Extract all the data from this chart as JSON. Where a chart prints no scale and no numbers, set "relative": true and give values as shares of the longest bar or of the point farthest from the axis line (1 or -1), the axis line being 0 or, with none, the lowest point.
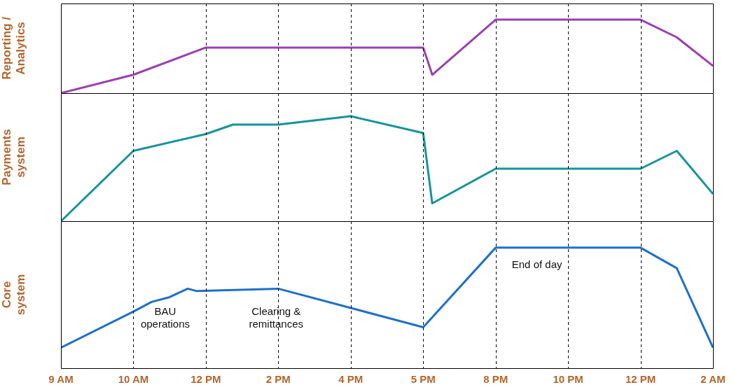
{
  "chart_data": [
    {
      "type": "line",
      "ylabel": "Reporting / Analytics",
      "relative": true,
      "grid": "x",
      "tick_labels": false,
      "categories": [
        null,
        null,
        null,
        null,
        null,
        null,
        null,
        null,
        null,
        null,
        null,
        null,
        null,
        null,
        null,
        null,
        null,
        null,
        null,
        null,
        null,
        null,
        null,
        null,
        null,
        null,
        null,
        null,
        null,
        null,
        null,
        null,
        null,
        null,
        null,
        null,
        null,
        null,
        null,
        null,
        null,
        null,
        null,
        null,
        null,
        null,
        null,
        null,
        null,
        null,
        null,
        null,
        null,
        null,
        null,
        null,
        null,
        null,
        null,
        null,
        null,
        null,
        null,
        null,
        null,
        null,
        null,
        null,
        null,
        null,
        null,
        null,
        null
      ],
      "series": [
        {
          "color": "#9b3fb0",
          "values": [
            0,
            null,
            null,
            null,
            null,
            null,
            null,
            null,
            0.25,
            null,
            null,
            null,
            null,
            null,
            null,
            null,
            0.62,
            null,
            null,
            null,
            null,
            null,
            null,
            null,
            null,
            null,
            null,
            null,
            null,
            null,
            null,
            null,
            null,
            null,
            null,
            null,
            null,
            null,
            null,
            null,
            0.62,
            0.25,
            null,
            null,
            null,
            null,
            null,
            null,
            1,
            null,
            null,
            null,
            null,
            null,
            null,
            null,
            null,
            null,
            null,
            null,
            null,
            null,
            null,
            null,
            1,
            null,
            null,
            null,
            0.76,
            null,
            null,
            null,
            0.37
          ]
        }
      ]
    },
    {
      "type": "line",
      "ylabel": "Payments system",
      "relative": true,
      "grid": "x",
      "tick_labels": false,
      "categories": [
        null,
        null,
        null,
        null,
        null,
        null,
        null,
        null,
        null,
        null,
        null,
        null,
        null,
        null,
        null,
        null,
        null,
        null,
        null,
        null,
        null,
        null,
        null,
        null,
        null,
        null,
        null,
        null,
        null,
        null,
        null,
        null,
        null,
        null,
        null,
        null,
        null,
        null,
        null,
        null,
        null,
        null,
        null,
        null,
        null,
        null,
        null,
        null,
        null,
        null,
        null,
        null,
        null,
        null,
        null,
        null,
        null,
        null,
        null,
        null,
        null,
        null,
        null,
        null,
        null,
        null,
        null,
        null,
        null,
        null,
        null,
        null,
        null
      ],
      "series": [
        {
          "color": "#16939c",
          "values": [
            0,
            null,
            null,
            null,
            null,
            null,
            null,
            null,
            0.67,
            null,
            null,
            null,
            null,
            null,
            null,
            null,
            0.83,
            null,
            null,
            0.92,
            null,
            null,
            null,
            null,
            0.92,
            null,
            null,
            null,
            null,
            null,
            null,
            null,
            1,
            null,
            null,
            null,
            null,
            null,
            null,
            null,
            0.84,
            0.17,
            null,
            null,
            null,
            null,
            null,
            null,
            0.5,
            null,
            null,
            null,
            null,
            null,
            null,
            null,
            null,
            null,
            null,
            null,
            null,
            null,
            null,
            null,
            0.5,
            null,
            null,
            null,
            0.67,
            null,
            null,
            null,
            0.26
          ]
        }
      ]
    },
    {
      "type": "line",
      "ylabel": "Core system",
      "relative": true,
      "grid": "x",
      "tick_labels": "x",
      "categories": [
        "9 AM",
        null,
        null,
        null,
        null,
        null,
        null,
        null,
        "10 AM",
        null,
        null,
        null,
        null,
        null,
        null,
        null,
        "12 PM",
        null,
        null,
        null,
        null,
        null,
        null,
        null,
        "2 PM",
        null,
        null,
        null,
        null,
        null,
        null,
        null,
        "4 PM",
        null,
        null,
        null,
        null,
        null,
        null,
        null,
        "5 PM",
        null,
        null,
        null,
        null,
        null,
        null,
        null,
        "8 PM",
        null,
        null,
        null,
        null,
        null,
        null,
        null,
        "10 PM",
        null,
        null,
        null,
        null,
        null,
        null,
        null,
        "12 PM",
        null,
        null,
        null,
        null,
        null,
        null,
        null,
        "2 AM"
      ],
      "series": [
        {
          "color": "#1f6fc9",
          "values": [
            0.17,
            null,
            null,
            null,
            null,
            null,
            null,
            null,
            0.47,
            null,
            0.55,
            null,
            0.59,
            null,
            0.66,
            0.64,
            null,
            null,
            null,
            null,
            null,
            null,
            null,
            null,
            0.66,
            null,
            null,
            null,
            null,
            null,
            null,
            null,
            null,
            null,
            null,
            null,
            null,
            null,
            null,
            null,
            0.34,
            null,
            null,
            null,
            null,
            null,
            null,
            null,
            1,
            null,
            null,
            null,
            null,
            null,
            null,
            null,
            null,
            null,
            null,
            null,
            null,
            null,
            null,
            null,
            1,
            null,
            null,
            null,
            0.83,
            null,
            null,
            null,
            0.17
          ]
        }
      ],
      "annotations": [
        "BAU operations",
        "Clearing & remittances",
        "End of day"
      ]
    }
  ]
}
